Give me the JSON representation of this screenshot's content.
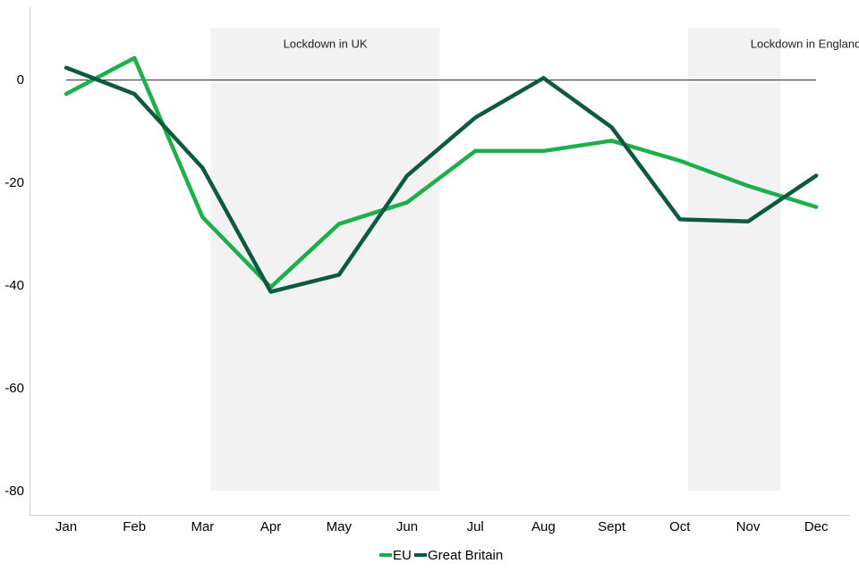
{
  "chart_data": {
    "type": "line",
    "title": "",
    "xlabel": "",
    "ylabel": "",
    "categories": [
      "Jan",
      "Feb",
      "Mar",
      "Apr",
      "May",
      "Jun",
      "Jul",
      "Aug",
      "Sept",
      "Oct",
      "Nov",
      "Dec"
    ],
    "y_ticks": [
      0,
      -20,
      -40,
      -60,
      -80
    ],
    "ylim": [
      -85,
      14
    ],
    "grid": false,
    "reference_line": 0,
    "series": [
      {
        "name": "EU",
        "color": "#1db04a",
        "values": [
          -2.8,
          4.2,
          -26.8,
          -40.4,
          -28.1,
          -23.9,
          -13.9,
          -13.9,
          -11.9,
          -15.8,
          -20.7,
          -24.8
        ]
      },
      {
        "name": "Great Britain",
        "color": "#0d5a3e",
        "values": [
          2.3,
          -2.8,
          -17.2,
          -41.3,
          -38.0,
          -18.7,
          -7.4,
          0.3,
          -9.3,
          -27.2,
          -27.6,
          -18.7
        ]
      }
    ],
    "shaded_periods": [
      {
        "label": "Lockdown in UK",
        "start": "Mar",
        "end": "Jun"
      },
      {
        "label": "Lockdown in England",
        "start": "Oct",
        "end": "Nov"
      }
    ],
    "legend_position": "bottom"
  }
}
